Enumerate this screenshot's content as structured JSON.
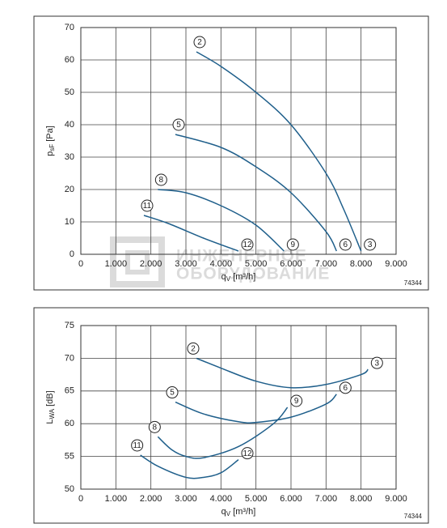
{
  "chart_data": [
    {
      "type": "line",
      "ylabel": {
        "main": "p",
        "sub": "sF",
        "unit": " [Pa]"
      },
      "xlabel": {
        "main": "q",
        "sub": "V",
        "unit": " [m³/h]"
      },
      "code": "74344",
      "watermark": [
        "ИНЖЕНЕРНОЕ",
        "ОБОРУДОВАНИЕ"
      ],
      "xlim": [
        0,
        9000
      ],
      "xticks": [
        0,
        {
          "value": 1000,
          "label": "1.000"
        },
        {
          "value": 2000,
          "label": "2.000"
        },
        {
          "value": 3000,
          "label": "3.000"
        },
        {
          "value": 4000,
          "label": "4.000"
        },
        {
          "value": 5000,
          "label": "5.000"
        },
        {
          "value": 6000,
          "label": "6.000"
        },
        {
          "value": 7000,
          "label": "7.000"
        },
        {
          "value": 8000,
          "label": "8.000"
        },
        {
          "value": 9000,
          "label": "9.000"
        }
      ],
      "ylim": [
        0,
        70
      ],
      "yticks": [
        0,
        10,
        20,
        30,
        40,
        50,
        60,
        70
      ],
      "grid": true,
      "series": [
        {
          "name": "2",
          "end_label": "3",
          "color": "#1f5f8b",
          "x": [
            3300,
            4000,
            5000,
            6000,
            7000,
            7500,
            8000
          ],
          "values": [
            62.5,
            58,
            50,
            40,
            25,
            14,
            1
          ]
        },
        {
          "name": "5",
          "end_label": "6",
          "color": "#1f5f8b",
          "x": [
            2700,
            4000,
            5000,
            6000,
            7000,
            7300
          ],
          "values": [
            37,
            33,
            27,
            19,
            7,
            1
          ]
        },
        {
          "name": "8",
          "end_label": "9",
          "color": "#1f5f8b",
          "x": [
            2200,
            3000,
            4000,
            5000,
            5800
          ],
          "values": [
            20,
            19,
            15,
            9,
            1
          ]
        },
        {
          "name": "11",
          "end_label": "12",
          "color": "#1f5f8b",
          "x": [
            1800,
            2500,
            3500,
            4500
          ],
          "values": [
            12,
            9.5,
            5,
            1
          ]
        }
      ]
    },
    {
      "type": "line",
      "ylabel": {
        "main": "L",
        "sub": "WA",
        "unit": " [dB]"
      },
      "xlabel": {
        "main": "q",
        "sub": "V",
        "unit": " [m³/h]"
      },
      "code": "74344",
      "xlim": [
        0,
        9000
      ],
      "xticks": [
        0,
        {
          "value": 1000,
          "label": "1.000"
        },
        {
          "value": 2000,
          "label": "2.000"
        },
        {
          "value": 3000,
          "label": "3.000"
        },
        {
          "value": 4000,
          "label": "4.000"
        },
        {
          "value": 5000,
          "label": "5.000"
        },
        {
          "value": 6000,
          "label": "6.000"
        },
        {
          "value": 7000,
          "label": "7.000"
        },
        {
          "value": 8000,
          "label": "8.000"
        },
        {
          "value": 9000,
          "label": "9.000"
        }
      ],
      "ylim": [
        50,
        75
      ],
      "yticks": [
        50,
        55,
        60,
        65,
        70,
        75
      ],
      "grid": true,
      "series": [
        {
          "name": "2",
          "end_label": "3",
          "color": "#1f5f8b",
          "x": [
            3300,
            4000,
            5000,
            6000,
            7000,
            8000,
            8200
          ],
          "values": [
            70,
            68.5,
            66.5,
            65.5,
            66,
            67.5,
            68.3
          ]
        },
        {
          "name": "5",
          "end_label": "6",
          "color": "#1f5f8b",
          "x": [
            2700,
            3500,
            4500,
            5000,
            6000,
            7000,
            7300
          ],
          "values": [
            63.3,
            61.5,
            60.3,
            60.2,
            61,
            63,
            64.5
          ]
        },
        {
          "name": "8",
          "end_label": "9",
          "color": "#1f5f8b",
          "x": [
            2200,
            2600,
            3000,
            3500,
            4500,
            5500,
            5900
          ],
          "values": [
            58,
            56,
            55,
            54.8,
            56.5,
            60,
            62.5
          ]
        },
        {
          "name": "11",
          "end_label": "12",
          "color": "#1f5f8b",
          "x": [
            1700,
            2200,
            3000,
            3500,
            4000,
            4500
          ],
          "values": [
            55.2,
            53.5,
            51.8,
            51.8,
            52.5,
            54.5
          ]
        }
      ]
    }
  ]
}
